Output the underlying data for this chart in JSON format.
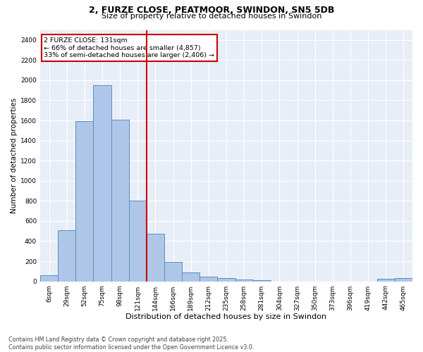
{
  "title_line1": "2, FURZE CLOSE, PEATMOOR, SWINDON, SN5 5DB",
  "title_line2": "Size of property relative to detached houses in Swindon",
  "xlabel": "Distribution of detached houses by size in Swindon",
  "ylabel": "Number of detached properties",
  "footer_line1": "Contains HM Land Registry data © Crown copyright and database right 2025.",
  "footer_line2": "Contains public sector information licensed under the Open Government Licence v3.0.",
  "annotation_line1": "2 FURZE CLOSE: 131sqm",
  "annotation_line2": "← 66% of detached houses are smaller (4,857)",
  "annotation_line3": "33% of semi-detached houses are larger (2,406) →",
  "categories": [
    "6sqm",
    "29sqm",
    "52sqm",
    "75sqm",
    "98sqm",
    "121sqm",
    "144sqm",
    "166sqm",
    "189sqm",
    "212sqm",
    "235sqm",
    "258sqm",
    "281sqm",
    "304sqm",
    "327sqm",
    "350sqm",
    "373sqm",
    "396sqm",
    "419sqm",
    "442sqm",
    "465sqm"
  ],
  "values": [
    60,
    510,
    1590,
    1950,
    1610,
    800,
    475,
    195,
    90,
    45,
    30,
    15,
    12,
    0,
    0,
    0,
    0,
    0,
    0,
    25,
    30
  ],
  "bar_color": "#aec6e8",
  "bar_edge_color": "#5a8fc0",
  "vline_color": "#cc0000",
  "annotation_box_color": "#cc0000",
  "bg_color": "#e8eef8",
  "grid_color": "#ffffff",
  "ylim": [
    0,
    2500
  ],
  "yticks": [
    0,
    200,
    400,
    600,
    800,
    1000,
    1200,
    1400,
    1600,
    1800,
    2000,
    2200,
    2400
  ],
  "title_fontsize": 9,
  "subtitle_fontsize": 8,
  "tick_fontsize": 6.5,
  "ylabel_fontsize": 7.5,
  "xlabel_fontsize": 8
}
